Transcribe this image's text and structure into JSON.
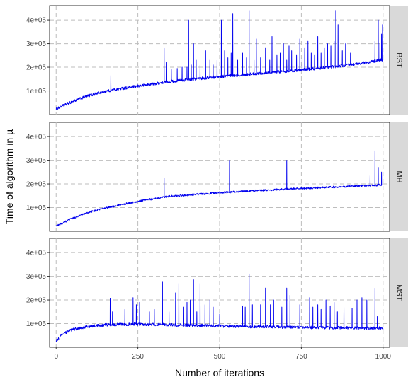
{
  "chart_data": {
    "type": "line",
    "xlabel": "Number of iterations",
    "ylabel": "Time of algorithm in µ",
    "xlim": [
      -20,
      1020
    ],
    "ylim": [
      0,
      460000
    ],
    "x_ticks": [
      0,
      250,
      500,
      750,
      1000
    ],
    "x_tick_labels": [
      "0",
      "250",
      "500",
      "750",
      "1000"
    ],
    "y_ticks": [
      100000,
      200000,
      300000,
      400000
    ],
    "y_tick_labels": [
      "1e+05",
      "2e+05",
      "3e+05",
      "4e+05"
    ],
    "grid": true,
    "line_color": "#0000ee",
    "panels": [
      {
        "label": "BST",
        "baseline": {
          "x": [
            0,
            25,
            50,
            100,
            150,
            200,
            250,
            300,
            350,
            400,
            500,
            600,
            700,
            800,
            900,
            950,
            1000
          ],
          "y": [
            25000,
            40000,
            55000,
            80000,
            98000,
            110000,
            120000,
            130000,
            140000,
            147000,
            160000,
            172000,
            183000,
            195000,
            210000,
            220000,
            232000
          ]
        },
        "spikes": [
          {
            "x": 167,
            "y": 165000
          },
          {
            "x": 330,
            "y": 280000
          },
          {
            "x": 338,
            "y": 220000
          },
          {
            "x": 352,
            "y": 190000
          },
          {
            "x": 370,
            "y": 195000
          },
          {
            "x": 385,
            "y": 200000
          },
          {
            "x": 400,
            "y": 200000
          },
          {
            "x": 405,
            "y": 400000
          },
          {
            "x": 413,
            "y": 210000
          },
          {
            "x": 420,
            "y": 300000
          },
          {
            "x": 428,
            "y": 230000
          },
          {
            "x": 440,
            "y": 210000
          },
          {
            "x": 457,
            "y": 270000
          },
          {
            "x": 470,
            "y": 230000
          },
          {
            "x": 480,
            "y": 210000
          },
          {
            "x": 492,
            "y": 230000
          },
          {
            "x": 505,
            "y": 400000
          },
          {
            "x": 515,
            "y": 270000
          },
          {
            "x": 525,
            "y": 240000
          },
          {
            "x": 535,
            "y": 260000
          },
          {
            "x": 540,
            "y": 425000
          },
          {
            "x": 555,
            "y": 230000
          },
          {
            "x": 570,
            "y": 260000
          },
          {
            "x": 582,
            "y": 240000
          },
          {
            "x": 590,
            "y": 440000
          },
          {
            "x": 605,
            "y": 230000
          },
          {
            "x": 612,
            "y": 320000
          },
          {
            "x": 625,
            "y": 240000
          },
          {
            "x": 640,
            "y": 280000
          },
          {
            "x": 653,
            "y": 230000
          },
          {
            "x": 660,
            "y": 330000
          },
          {
            "x": 675,
            "y": 250000
          },
          {
            "x": 685,
            "y": 260000
          },
          {
            "x": 695,
            "y": 300000
          },
          {
            "x": 705,
            "y": 230000
          },
          {
            "x": 712,
            "y": 290000
          },
          {
            "x": 720,
            "y": 270000
          },
          {
            "x": 735,
            "y": 250000
          },
          {
            "x": 745,
            "y": 320000
          },
          {
            "x": 752,
            "y": 240000
          },
          {
            "x": 760,
            "y": 280000
          },
          {
            "x": 770,
            "y": 310000
          },
          {
            "x": 780,
            "y": 260000
          },
          {
            "x": 790,
            "y": 250000
          },
          {
            "x": 800,
            "y": 330000
          },
          {
            "x": 810,
            "y": 260000
          },
          {
            "x": 820,
            "y": 280000
          },
          {
            "x": 830,
            "y": 300000
          },
          {
            "x": 840,
            "y": 290000
          },
          {
            "x": 850,
            "y": 310000
          },
          {
            "x": 855,
            "y": 440000
          },
          {
            "x": 862,
            "y": 380000
          },
          {
            "x": 875,
            "y": 270000
          },
          {
            "x": 885,
            "y": 300000
          },
          {
            "x": 900,
            "y": 260000
          },
          {
            "x": 975,
            "y": 310000
          },
          {
            "x": 985,
            "y": 400000
          },
          {
            "x": 990,
            "y": 300000
          },
          {
            "x": 995,
            "y": 340000
          },
          {
            "x": 998,
            "y": 380000
          }
        ]
      },
      {
        "label": "MH",
        "baseline": {
          "x": [
            0,
            25,
            50,
            100,
            150,
            200,
            250,
            300,
            350,
            400,
            500,
            600,
            700,
            800,
            900,
            1000
          ],
          "y": [
            22000,
            38000,
            55000,
            80000,
            98000,
            113000,
            126000,
            138000,
            148000,
            153000,
            163000,
            171000,
            178000,
            184000,
            190000,
            196000
          ]
        },
        "spikes": [
          {
            "x": 330,
            "y": 225000
          },
          {
            "x": 530,
            "y": 300000
          },
          {
            "x": 705,
            "y": 300000
          },
          {
            "x": 960,
            "y": 235000
          },
          {
            "x": 975,
            "y": 340000
          },
          {
            "x": 985,
            "y": 270000
          },
          {
            "x": 995,
            "y": 250000
          }
        ]
      },
      {
        "label": "MST",
        "baseline": {
          "x": [
            0,
            20,
            50,
            100,
            150,
            200,
            250,
            300,
            400,
            500,
            600,
            700,
            800,
            900,
            1000
          ],
          "y": [
            25000,
            55000,
            75000,
            88000,
            95000,
            97000,
            97000,
            96000,
            93000,
            90000,
            87000,
            85000,
            83000,
            82000,
            81000
          ]
        },
        "spikes": [
          {
            "x": 165,
            "y": 205000
          },
          {
            "x": 172,
            "y": 150000
          },
          {
            "x": 210,
            "y": 160000
          },
          {
            "x": 235,
            "y": 210000
          },
          {
            "x": 245,
            "y": 180000
          },
          {
            "x": 255,
            "y": 190000
          },
          {
            "x": 285,
            "y": 150000
          },
          {
            "x": 300,
            "y": 160000
          },
          {
            "x": 325,
            "y": 275000
          },
          {
            "x": 345,
            "y": 150000
          },
          {
            "x": 365,
            "y": 230000
          },
          {
            "x": 375,
            "y": 270000
          },
          {
            "x": 390,
            "y": 170000
          },
          {
            "x": 400,
            "y": 190000
          },
          {
            "x": 410,
            "y": 200000
          },
          {
            "x": 420,
            "y": 285000
          },
          {
            "x": 430,
            "y": 150000
          },
          {
            "x": 440,
            "y": 270000
          },
          {
            "x": 455,
            "y": 180000
          },
          {
            "x": 470,
            "y": 200000
          },
          {
            "x": 480,
            "y": 170000
          },
          {
            "x": 500,
            "y": 140000
          },
          {
            "x": 570,
            "y": 175000
          },
          {
            "x": 578,
            "y": 170000
          },
          {
            "x": 590,
            "y": 310000
          },
          {
            "x": 600,
            "y": 180000
          },
          {
            "x": 625,
            "y": 180000
          },
          {
            "x": 640,
            "y": 250000
          },
          {
            "x": 655,
            "y": 180000
          },
          {
            "x": 665,
            "y": 200000
          },
          {
            "x": 690,
            "y": 170000
          },
          {
            "x": 705,
            "y": 250000
          },
          {
            "x": 715,
            "y": 220000
          },
          {
            "x": 745,
            "y": 180000
          },
          {
            "x": 775,
            "y": 210000
          },
          {
            "x": 785,
            "y": 170000
          },
          {
            "x": 800,
            "y": 180000
          },
          {
            "x": 810,
            "y": 160000
          },
          {
            "x": 825,
            "y": 200000
          },
          {
            "x": 838,
            "y": 175000
          },
          {
            "x": 850,
            "y": 190000
          },
          {
            "x": 860,
            "y": 150000
          },
          {
            "x": 880,
            "y": 170000
          },
          {
            "x": 905,
            "y": 165000
          },
          {
            "x": 920,
            "y": 200000
          },
          {
            "x": 935,
            "y": 210000
          },
          {
            "x": 950,
            "y": 200000
          },
          {
            "x": 975,
            "y": 250000
          },
          {
            "x": 982,
            "y": 130000
          }
        ]
      }
    ]
  }
}
